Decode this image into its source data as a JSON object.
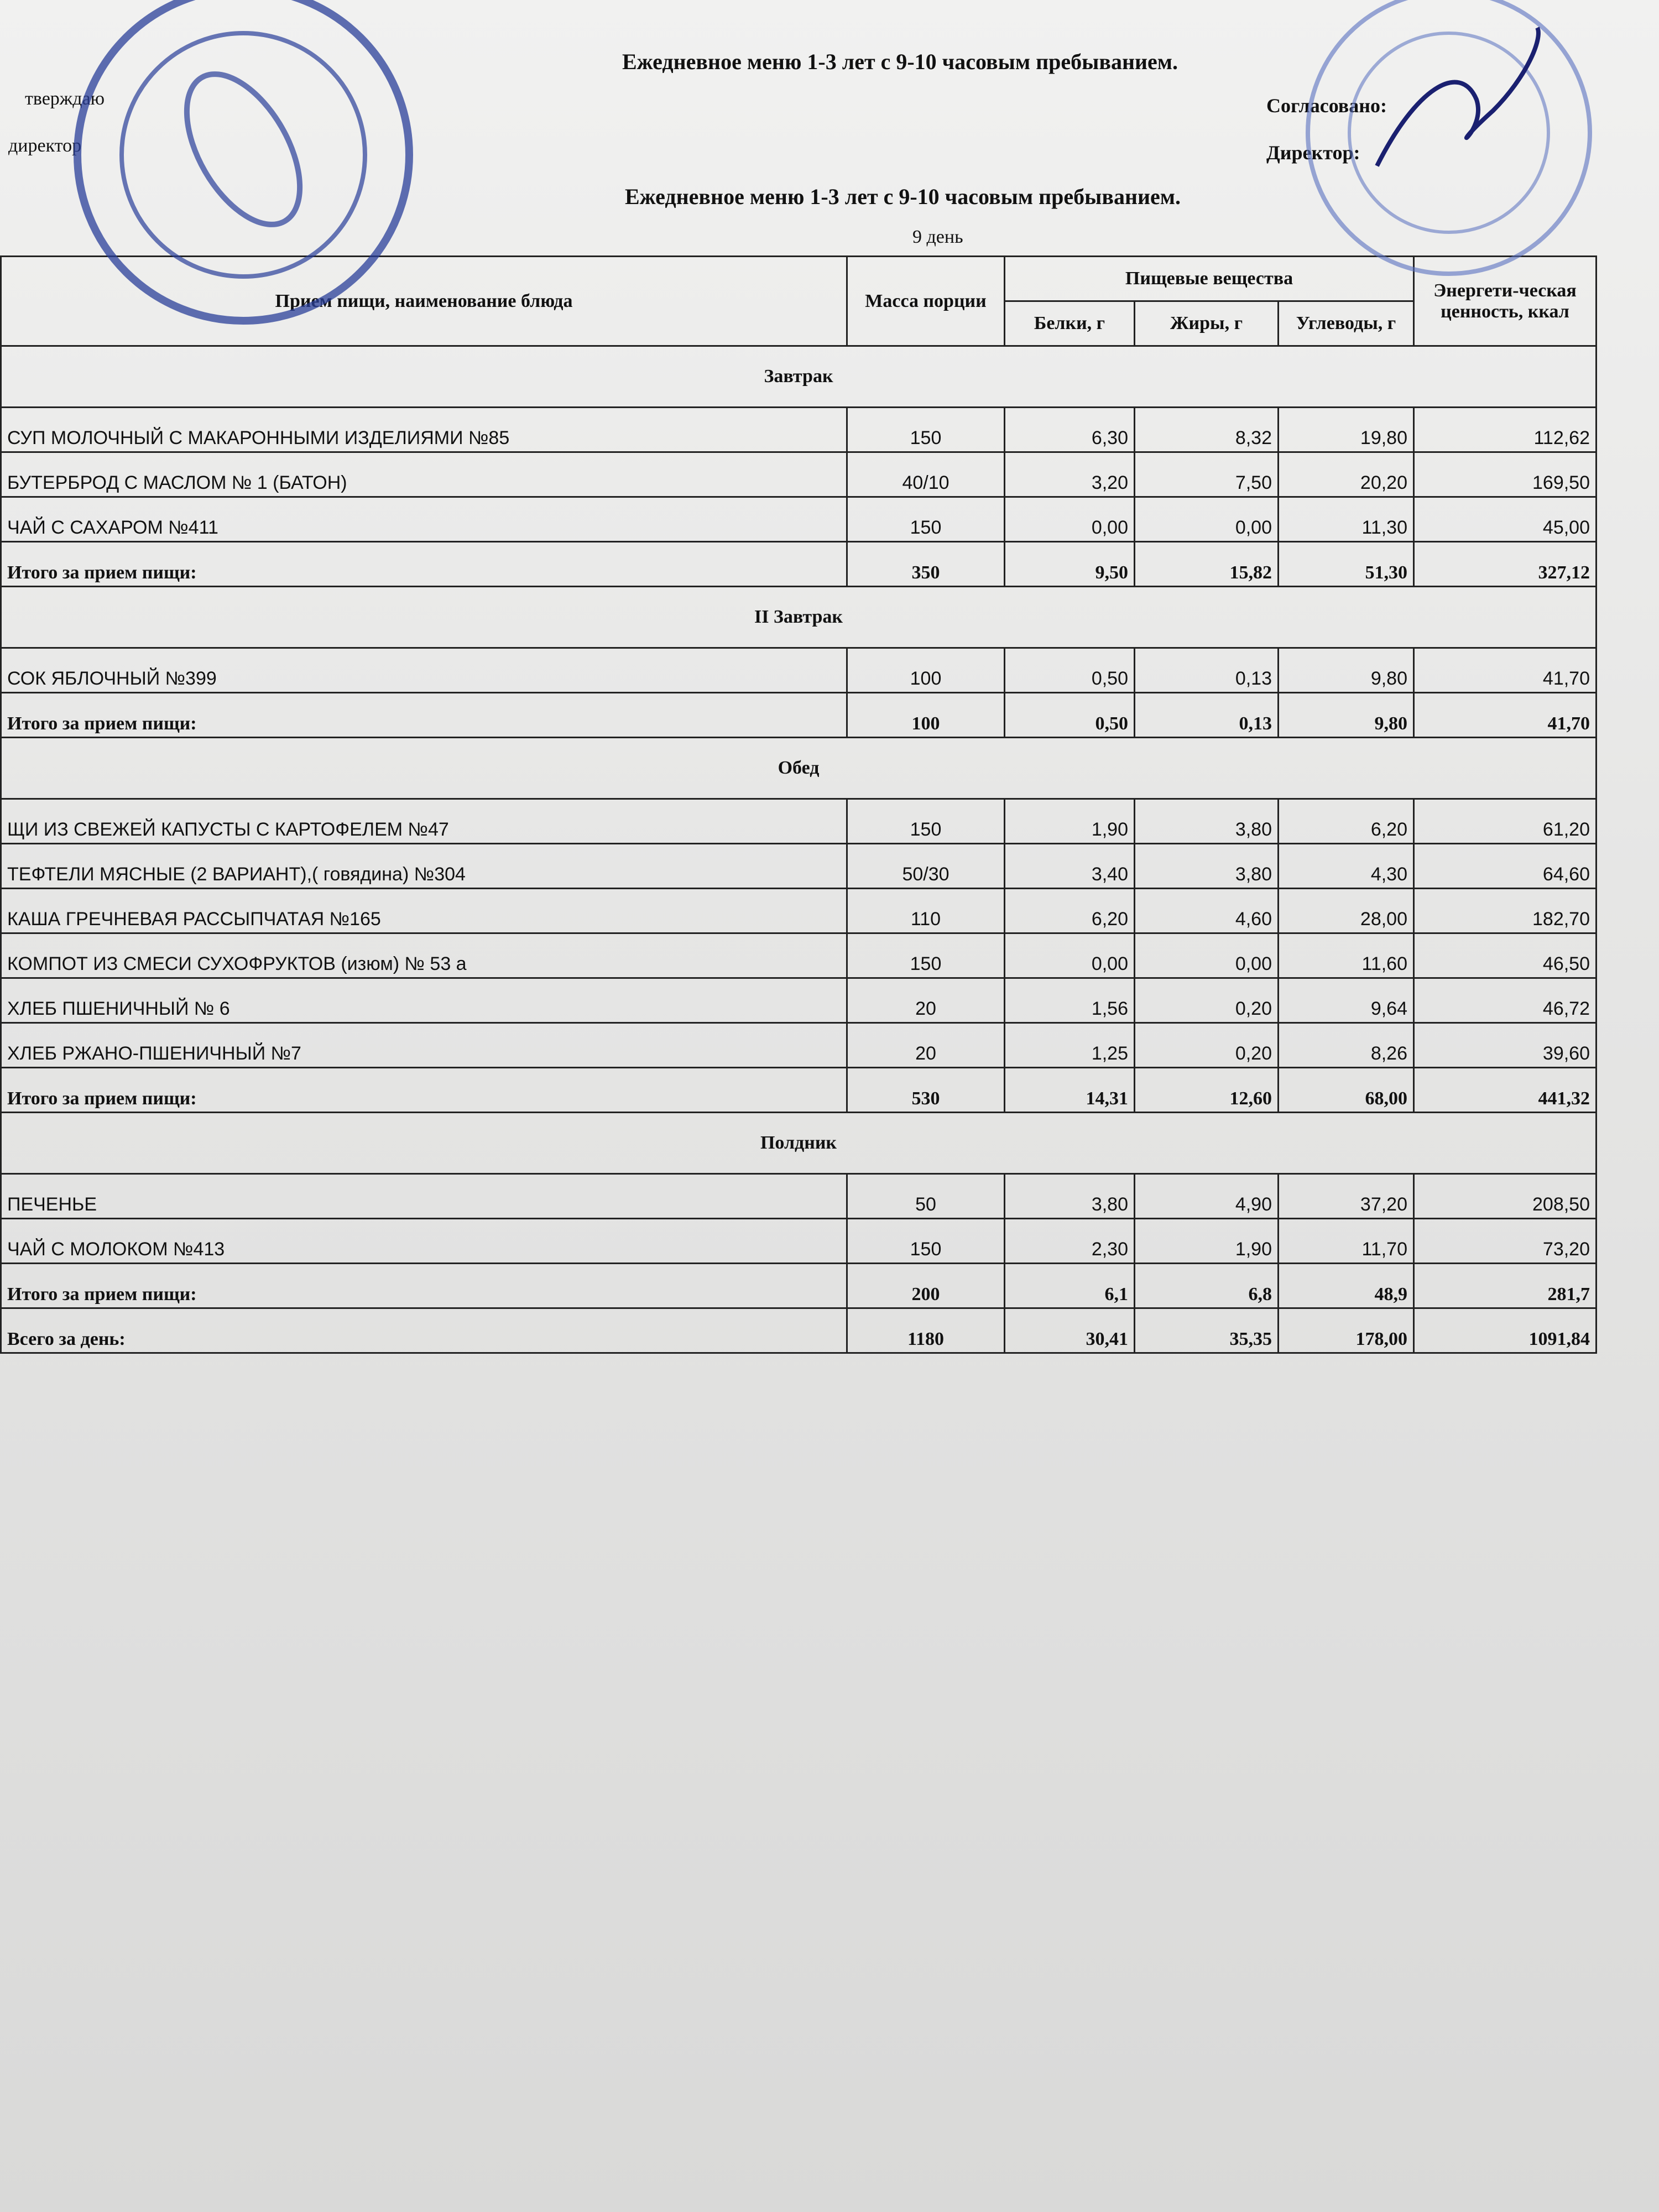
{
  "header": {
    "top_title": "Ежедневное меню 1-3 лет с 9-10 часовым пребыванием.",
    "left_approval": [
      "тверждаю",
      "директор"
    ],
    "right_approval": [
      "Согласовано:",
      "Директор:"
    ],
    "title": "Ежедневное меню 1-3 лет с 9-10 часовым пребыванием.",
    "day": "9 день"
  },
  "table": {
    "columns": {
      "dish": "Прием пищи, наименование блюда",
      "mass": "Масса порции",
      "nutrients": "Пищевые вещества",
      "protein": "Белки, г",
      "fat": "Жиры, г",
      "carbs": "Углеводы, г",
      "energy": "Энергети-ческая ценность, ккал"
    },
    "sections": [
      {
        "name": "Завтрак",
        "rows": [
          [
            "СУП МОЛОЧНЫЙ С МАКАРОННЫМИ ИЗДЕЛИЯМИ №85",
            "150",
            "6,30",
            "8,32",
            "19,80",
            "112,62"
          ],
          [
            "БУТЕРБРОД С МАСЛОМ № 1 (БАТОН)",
            "40/10",
            "3,20",
            "7,50",
            "20,20",
            "169,50"
          ],
          [
            "ЧАЙ С САХАРОМ №411",
            "150",
            "0,00",
            "0,00",
            "11,30",
            "45,00"
          ]
        ],
        "total": [
          "Итого за прием пищи:",
          "350",
          "9,50",
          "15,82",
          "51,30",
          "327,12"
        ]
      },
      {
        "name": "II Завтрак",
        "rows": [
          [
            "СОК ЯБЛОЧНЫЙ №399",
            "100",
            "0,50",
            "0,13",
            "9,80",
            "41,70"
          ]
        ],
        "total": [
          "Итого за прием пищи:",
          "100",
          "0,50",
          "0,13",
          "9,80",
          "41,70"
        ]
      },
      {
        "name": "Обед",
        "rows": [
          [
            "ЩИ ИЗ СВЕЖЕЙ КАПУСТЫ С КАРТОФЕЛЕМ №47",
            "150",
            "1,90",
            "3,80",
            "6,20",
            "61,20"
          ],
          [
            "ТЕФТЕЛИ МЯСНЫЕ (2 ВАРИАНТ),( говядина) №304",
            "50/30",
            "3,40",
            "3,80",
            "4,30",
            "64,60"
          ],
          [
            "КАША ГРЕЧНЕВАЯ РАССЫПЧАТАЯ №165",
            "110",
            "6,20",
            "4,60",
            "28,00",
            "182,70"
          ],
          [
            "КОМПОТ ИЗ СМЕСИ СУХОФРУКТОВ (изюм) № 53 а",
            "150",
            "0,00",
            "0,00",
            "11,60",
            "46,50"
          ],
          [
            "ХЛЕБ ПШЕНИЧНЫЙ № 6",
            "20",
            "1,56",
            "0,20",
            "9,64",
            "46,72"
          ],
          [
            "ХЛЕБ РЖАНО-ПШЕНИЧНЫЙ №7",
            "20",
            "1,25",
            "0,20",
            "8,26",
            "39,60"
          ]
        ],
        "total": [
          "Итого за прием пищи:",
          "530",
          "14,31",
          "12,60",
          "68,00",
          "441,32"
        ]
      },
      {
        "name": "Полдник",
        "rows": [
          [
            "ПЕЧЕНЬЕ",
            "50",
            "3,80",
            "4,90",
            "37,20",
            "208,50"
          ],
          [
            "ЧАЙ С МОЛОКОМ №413",
            "150",
            "2,30",
            "1,90",
            "11,70",
            "73,20"
          ]
        ],
        "total": [
          "Итого за прием пищи:",
          "200",
          "6,1",
          "6,8",
          "48,9",
          "281,7"
        ]
      }
    ],
    "day_total": [
      "Всего за день:",
      "1180",
      "30,41",
      "35,35",
      "178,00",
      "1091,84"
    ]
  }
}
